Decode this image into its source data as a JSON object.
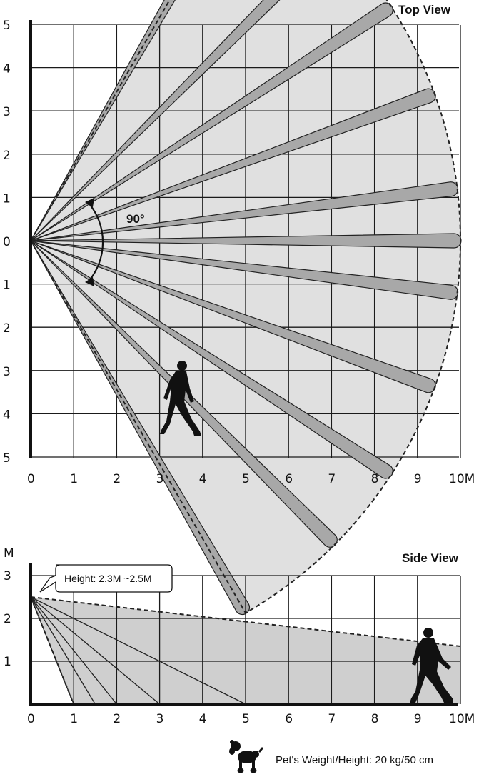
{
  "top_view": {
    "title": "Top View",
    "y_ticks": [
      "5",
      "4",
      "3",
      "2",
      "1",
      "0",
      "1",
      "2",
      "3",
      "4",
      "5"
    ],
    "x_ticks": [
      "0",
      "1",
      "2",
      "3",
      "4",
      "5",
      "6",
      "7",
      "8",
      "9",
      "10M"
    ],
    "angle_label": "90°",
    "beam_angles_deg": [
      60,
      45,
      33,
      20,
      7,
      0,
      -7,
      -20,
      -33,
      -45,
      -60
    ],
    "beam_length_m": 10,
    "coverage_radius_m": 10,
    "coverage_half_angle_deg": 60,
    "icons": [
      "walking-person-icon"
    ]
  },
  "side_view": {
    "title": "Side View",
    "y_unit": "M",
    "y_ticks": [
      "3",
      "2",
      "1"
    ],
    "x_ticks": [
      "0",
      "1",
      "2",
      "3",
      "4",
      "5",
      "6",
      "7",
      "8",
      "9",
      "10M"
    ],
    "height_callout": "Height: 2.3M ~2.5M",
    "mount_height_m": 2.5,
    "ray_ground_points_m": [
      1,
      1.5,
      2,
      3,
      5
    ],
    "far_edge_height_m": 1.35,
    "icons": [
      "walking-person-icon"
    ]
  },
  "pet_note": {
    "label": "Pet's Weight/Height: 20 kg/50 cm",
    "icon": "poodle-icon"
  },
  "colors": {
    "coverage_fill": "#e0e0e0",
    "beam_fill": "#a8a8a8",
    "side_fill": "#cfcfcf",
    "grid": "#1a1a1a"
  }
}
